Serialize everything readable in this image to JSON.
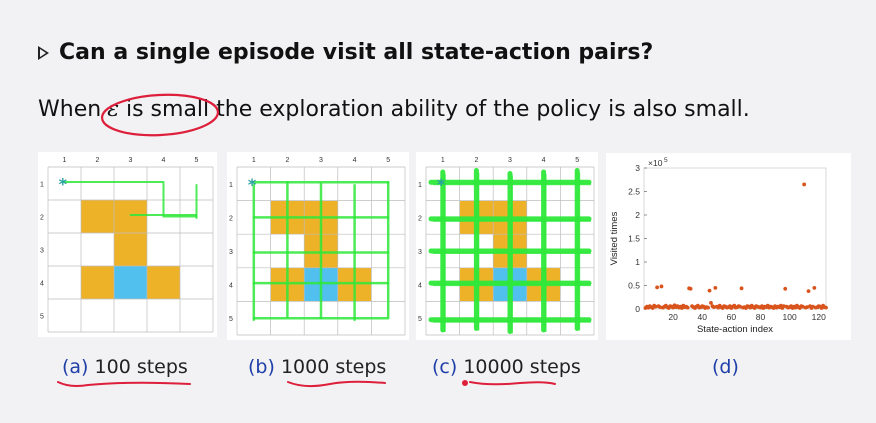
{
  "heading": {
    "bullet_icon": "triangle-right-icon",
    "text": "Can a single episode visit all state-action pairs?"
  },
  "line2": {
    "before": "When",
    "eps": "ε",
    "mid": " is small",
    "after": " the exploration ability of the policy is also small."
  },
  "grid": {
    "col_labels": [
      "1",
      "2",
      "3",
      "4",
      "5"
    ],
    "row_labels": [
      "1",
      "2",
      "3",
      "4",
      "5"
    ],
    "forbidden_cells": [
      [
        1,
        1
      ],
      [
        1,
        2
      ],
      [
        2,
        2
      ],
      [
        3,
        1
      ],
      [
        3,
        3
      ]
    ],
    "target_cell": [
      3,
      2
    ],
    "start_marker": "*",
    "colors": {
      "forbidden": "#eeb228",
      "target": "#52c0ee",
      "path": "#2ee83a",
      "marker": "#2aa0a0"
    }
  },
  "captions": [
    {
      "label": "(a)",
      "text": "100 steps"
    },
    {
      "label": "(b)",
      "text": "1000 steps"
    },
    {
      "label": "(c)",
      "text": "10000 steps"
    },
    {
      "label": "(d)",
      "text": ""
    }
  ],
  "chart_data": {
    "type": "scatter",
    "xlabel": "State-action index",
    "ylabel": "Visited times",
    "exponent_label": "×10",
    "exponent_power": "5",
    "xticks": [
      20,
      40,
      60,
      80,
      100,
      120
    ],
    "yticks": [
      "0",
      "0.5",
      "1",
      "1.5",
      "2",
      "2.5",
      "3"
    ],
    "xlim": [
      0,
      125
    ],
    "ylim": [
      0,
      3
    ],
    "series": [
      {
        "color": "#d9541c",
        "x": [
          1,
          2,
          3,
          4,
          5,
          6,
          7,
          8,
          9,
          10,
          11,
          12,
          13,
          14,
          15,
          16,
          17,
          18,
          19,
          20,
          21,
          22,
          23,
          24,
          25,
          26,
          27,
          28,
          29,
          30,
          31,
          32,
          33,
          34,
          35,
          36,
          37,
          38,
          39,
          40,
          41,
          42,
          43,
          44,
          45,
          46,
          47,
          48,
          49,
          50,
          51,
          52,
          53,
          54,
          55,
          56,
          57,
          58,
          59,
          60,
          61,
          62,
          63,
          64,
          65,
          66,
          67,
          68,
          69,
          70,
          71,
          72,
          73,
          74,
          75,
          76,
          77,
          78,
          79,
          80,
          81,
          82,
          83,
          84,
          85,
          86,
          87,
          88,
          89,
          90,
          91,
          92,
          93,
          94,
          95,
          96,
          97,
          98,
          99,
          100,
          101,
          102,
          103,
          104,
          105,
          106,
          107,
          108,
          109,
          110,
          111,
          112,
          113,
          114,
          115,
          116,
          117,
          118,
          119,
          120,
          121,
          122,
          123,
          124,
          125
        ],
        "y": [
          0.02,
          0.05,
          0.03,
          0.06,
          0.04,
          0.02,
          0.07,
          0.05,
          0.46,
          0.06,
          0.04,
          0.48,
          0.03,
          0.05,
          0.07,
          0.04,
          0.02,
          0.06,
          0.05,
          0.03,
          0.08,
          0.04,
          0.06,
          0.03,
          0.05,
          0.02,
          0.07,
          0.04,
          0.05,
          0.03,
          0.44,
          0.43,
          0.06,
          0.04,
          0.02,
          0.05,
          0.07,
          0.03,
          0.04,
          0.06,
          0.05,
          0.02,
          0.04,
          0.03,
          0.39,
          0.13,
          0.06,
          0.04,
          0.45,
          0.05,
          0.03,
          0.07,
          0.04,
          0.02,
          0.06,
          0.05,
          0.03,
          0.04,
          0.06,
          0.02,
          0.05,
          0.07,
          0.03,
          0.04,
          0.06,
          0.05,
          0.44,
          0.03,
          0.04,
          0.02,
          0.06,
          0.05,
          0.03,
          0.07,
          0.04,
          0.02,
          0.06,
          0.05,
          0.04,
          0.03,
          0.06,
          0.02,
          0.05,
          0.04,
          0.07,
          0.03,
          0.05,
          0.04,
          0.02,
          0.06,
          0.03,
          0.05,
          0.04,
          0.07,
          0.02,
          0.06,
          0.43,
          0.05,
          0.03,
          0.04,
          0.06,
          0.02,
          0.05,
          0.03,
          0.07,
          0.04,
          0.02,
          0.06,
          0.05,
          2.65,
          0.03,
          0.04,
          0.38,
          0.06,
          0.02,
          0.05,
          0.45,
          0.03,
          0.04,
          0.06,
          0.05,
          0.02,
          0.07,
          0.04,
          0.03
        ]
      }
    ]
  }
}
